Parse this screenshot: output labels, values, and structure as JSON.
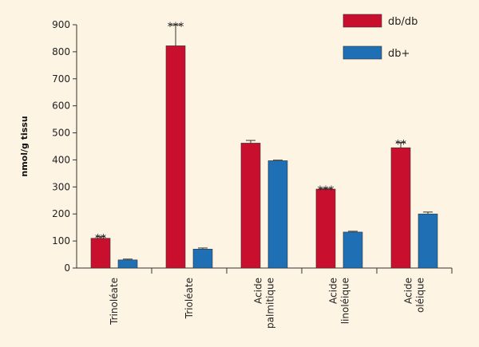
{
  "chart_data": {
    "type": "bar",
    "ylabel": "nmol/g tissu",
    "ylim": [
      0,
      900
    ],
    "yticks": [
      0,
      100,
      200,
      300,
      400,
      500,
      600,
      700,
      800,
      900
    ],
    "grid": false,
    "legend_position": "top-right",
    "categories": [
      [
        "Trinoléate"
      ],
      [
        "Trioléate"
      ],
      [
        "Acide",
        "palmitique"
      ],
      [
        "Acide",
        "linoléique"
      ],
      [
        "Acide",
        "oléique"
      ]
    ],
    "series": [
      {
        "name": "db/db",
        "color": "#c8102e",
        "values": [
          110,
          822,
          462,
          292,
          445
        ],
        "errors": [
          7,
          78,
          10,
          3,
          20
        ],
        "significance": [
          "**",
          "***",
          "",
          "***",
          "**"
        ]
      },
      {
        "name": "db+",
        "color": "#1f6fb5",
        "values": [
          30,
          70,
          397,
          133,
          200
        ],
        "errors": [
          3,
          4,
          2,
          3,
          7
        ],
        "significance": [
          "",
          "",
          "",
          "",
          ""
        ]
      }
    ]
  }
}
